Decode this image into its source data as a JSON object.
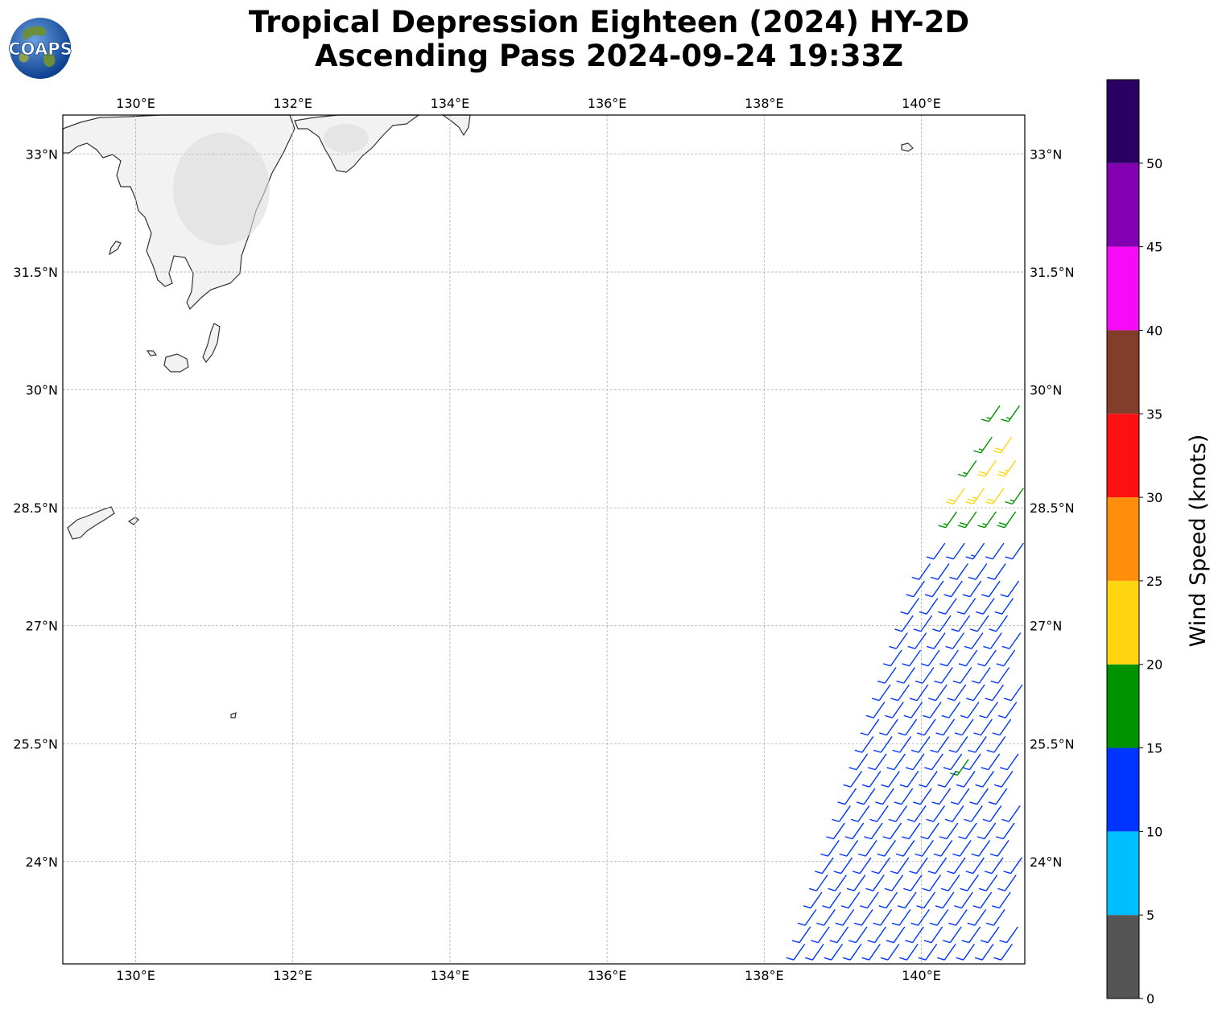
{
  "title_line1": "Tropical Depression Eighteen (2024) HY-2D",
  "title_line2": "Ascending Pass 2024-09-24 19:33Z",
  "logo_text": "COAPS",
  "map": {
    "lon_range": [
      129.1,
      141.35
    ],
    "lat_range": [
      22.75,
      33.55
    ],
    "lon_ticks": [
      {
        "value": 130,
        "label": "130°E"
      },
      {
        "value": 132,
        "label": "132°E"
      },
      {
        "value": 134,
        "label": "134°E"
      },
      {
        "value": 136,
        "label": "136°E"
      },
      {
        "value": 138,
        "label": "138°E"
      },
      {
        "value": 140,
        "label": "140°E"
      }
    ],
    "lat_ticks": [
      {
        "value": 33,
        "label": "33°N"
      },
      {
        "value": 31.5,
        "label": "31.5°N"
      },
      {
        "value": 30,
        "label": "30°N"
      },
      {
        "value": 28.5,
        "label": "28.5°N"
      },
      {
        "value": 27,
        "label": "27°N"
      },
      {
        "value": 25.5,
        "label": "25.5°N"
      },
      {
        "value": 24,
        "label": "24°N"
      }
    ],
    "gridlines": true,
    "land_color": "#f2f2f2",
    "coast_color": "#333333"
  },
  "colorbar": {
    "label": "Wind Speed (knots)",
    "bins": [
      {
        "min": 0,
        "max": 5,
        "color": "#555555"
      },
      {
        "min": 5,
        "max": 10,
        "color": "#00bfff"
      },
      {
        "min": 10,
        "max": 15,
        "color": "#0035ff"
      },
      {
        "min": 15,
        "max": 20,
        "color": "#009300"
      },
      {
        "min": 20,
        "max": 25,
        "color": "#ffd511"
      },
      {
        "min": 25,
        "max": 30,
        "color": "#ff8e0c"
      },
      {
        "min": 30,
        "max": 35,
        "color": "#ff1010"
      },
      {
        "min": 35,
        "max": 40,
        "color": "#823e2b"
      },
      {
        "min": 40,
        "max": 45,
        "color": "#f70af5"
      },
      {
        "min": 45,
        "max": 50,
        "color": "#8200b1"
      },
      {
        "min": 50,
        "max": 55,
        "color": "#2b0064"
      }
    ],
    "ticks": [
      {
        "value": 0,
        "label": "0"
      },
      {
        "value": 5,
        "label": "5"
      },
      {
        "value": 10,
        "label": "10"
      },
      {
        "value": 15,
        "label": "15"
      },
      {
        "value": 20,
        "label": "20"
      },
      {
        "value": 25,
        "label": "25"
      },
      {
        "value": 30,
        "label": "30"
      },
      {
        "value": 35,
        "label": "35"
      },
      {
        "value": 40,
        "label": "40"
      },
      {
        "value": 45,
        "label": "45"
      },
      {
        "value": 50,
        "label": "50"
      }
    ]
  },
  "wind_swath": {
    "direction_from_deg": 215,
    "rows": [
      {
        "lat": 28.05,
        "lons": [
          140.3,
          140.55,
          140.8,
          141.05,
          141.3
        ],
        "speeds": [
          12,
          11,
          13,
          12,
          12
        ]
      },
      {
        "lat": 28.45,
        "lons": [
          140.45,
          140.7,
          140.95,
          141.2
        ],
        "speeds": [
          17,
          18,
          17,
          18
        ]
      },
      {
        "lat": 28.75,
        "lons": [
          140.55,
          140.8,
          141.05,
          141.3
        ],
        "speeds": [
          22,
          23,
          22,
          17
        ]
      },
      {
        "lat": 29.1,
        "lons": [
          140.7,
          140.95,
          141.2
        ],
        "speeds": [
          17,
          22,
          23
        ]
      },
      {
        "lat": 29.4,
        "lons": [
          140.9,
          141.15
        ],
        "speeds": [
          17,
          22
        ]
      },
      {
        "lat": 29.8,
        "lons": [
          141.0,
          141.25
        ],
        "speeds": [
          16,
          17
        ]
      },
      {
        "lat": 25.3,
        "lons": [
          140.6
        ],
        "speeds": [
          16
        ]
      }
    ]
  }
}
